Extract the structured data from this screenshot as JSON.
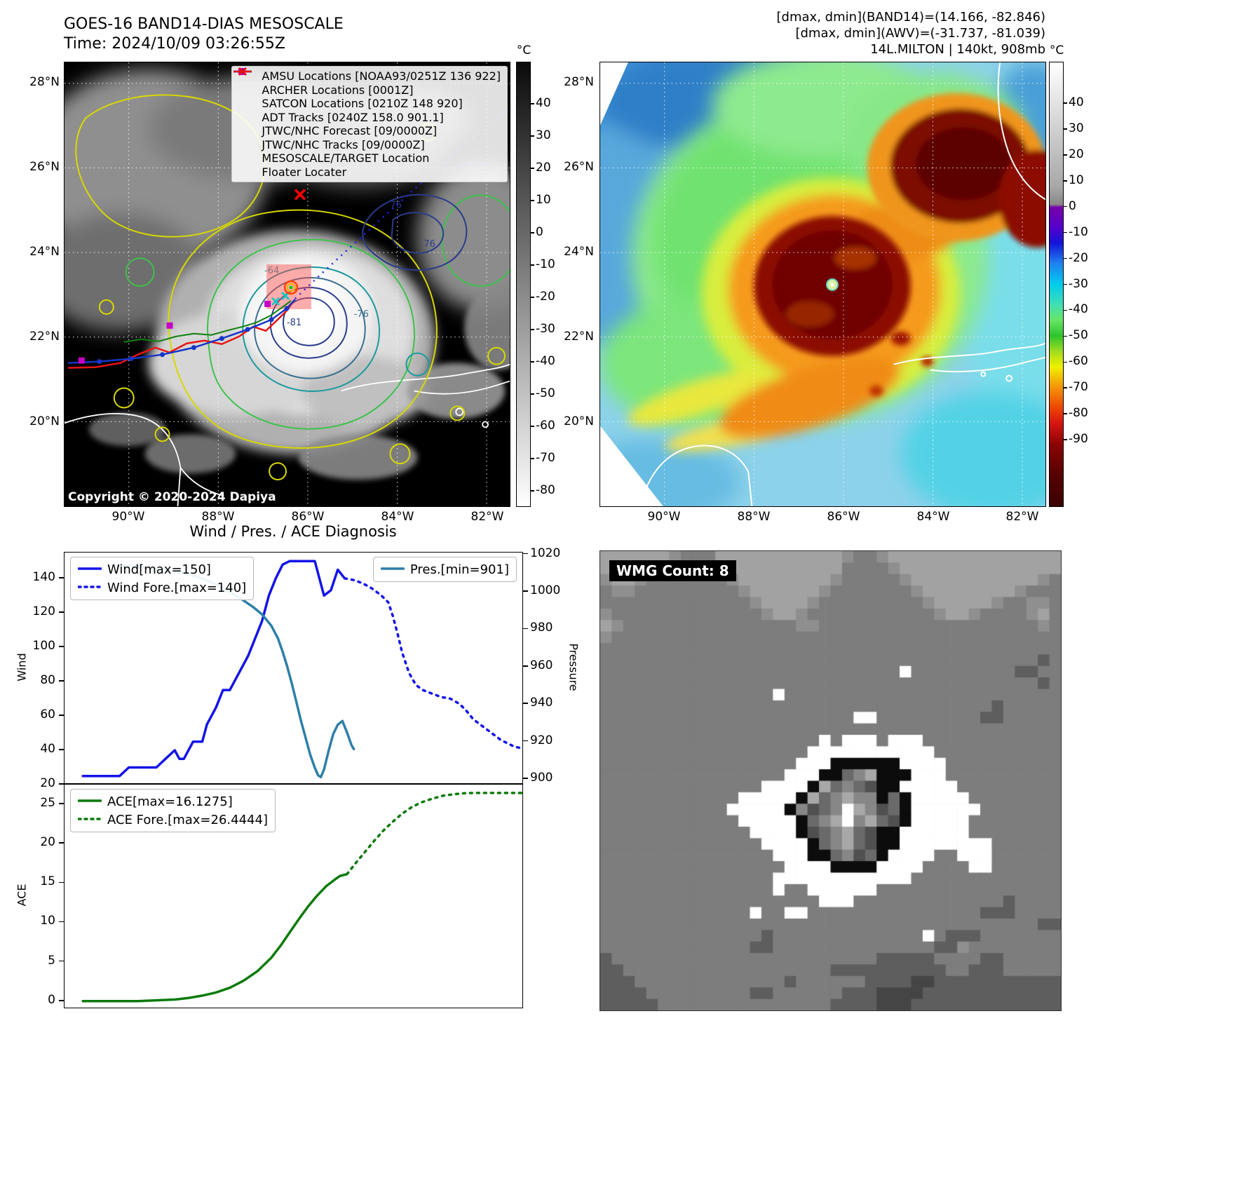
{
  "map_left": {
    "title": "GOES-16 BAND14-DIAS MESOSCALE",
    "time": "Time: 2024/10/09 03:26:55Z",
    "lat_ticks": [
      "28°N",
      "26°N",
      "24°N",
      "22°N",
      "20°N"
    ],
    "lon_ticks": [
      "90°W",
      "88°W",
      "86°W",
      "84°W",
      "82°W"
    ],
    "legend": [
      {
        "label": "AMSU Locations [NOAA93/0251Z 136 922]",
        "marker": "square",
        "color": "#c400c4"
      },
      {
        "label": "ARCHER Locations [0001Z]",
        "marker": "square",
        "color": "#c400c4"
      },
      {
        "label": "SATCON Locations [0210Z 148 920]",
        "marker": "x",
        "color": "#00c8c8"
      },
      {
        "label": "ADT Tracks [0240Z 158.0 901.1]",
        "marker": "line",
        "color": "#0f7f0f"
      },
      {
        "label": "JTWC/NHC Forecast [09/0000Z]",
        "marker": "dotted",
        "color": "#2222e8"
      },
      {
        "label": "JTWC/NHC Tracks [09/0000Z]",
        "marker": "line-dot",
        "color": "#1535c8"
      },
      {
        "label": "MESOSCALE/TARGET Location",
        "marker": "x",
        "color": "#ff0000"
      },
      {
        "label": "Floater Locater",
        "marker": "line",
        "color": "#e81414"
      }
    ],
    "copyright": "Copyright © 2020-2024 Dapiya",
    "contour_labels": [
      "-64",
      "-76",
      "-81",
      "76",
      "76"
    ],
    "colorbar": {
      "unit": "°C",
      "ticks": [
        40,
        30,
        20,
        10,
        0,
        -10,
        -20,
        -30,
        -40,
        -50,
        -60,
        -70,
        -80
      ],
      "top_value": 53,
      "bottom_value": -85,
      "stops": [
        [
          53,
          "#0a0a0a"
        ],
        [
          -85,
          "#ffffff"
        ]
      ]
    }
  },
  "map_right": {
    "header_lines": [
      "[dmax, dmin](BAND14)=(14.166, -82.846)",
      "[dmax, dmin](AWV)=(-31.737, -81.039)",
      "14L.MILTON | 140kt, 908mb"
    ],
    "lat_ticks": [
      "28°N",
      "26°N",
      "24°N",
      "22°N",
      "20°N"
    ],
    "lon_ticks": [
      "90°W",
      "88°W",
      "86°W",
      "84°W",
      "82°W"
    ],
    "colorbar": {
      "unit": "°C",
      "ticks": [
        40,
        30,
        20,
        10,
        0,
        -10,
        -20,
        -30,
        -40,
        -50,
        -60,
        -70,
        -80,
        -90
      ],
      "top_value": 56,
      "bottom_value": -116,
      "stops": [
        [
          56,
          "#ffffff"
        ],
        [
          8,
          "#a8a8a8"
        ],
        [
          1,
          "#878787"
        ],
        [
          0,
          "#7700aa"
        ],
        [
          -8,
          "#5500cc"
        ],
        [
          -14,
          "#1414d8"
        ],
        [
          -22,
          "#1e82f0"
        ],
        [
          -30,
          "#00ccec"
        ],
        [
          -38,
          "#43dfb2"
        ],
        [
          -44,
          "#66e566"
        ],
        [
          -50,
          "#2cc42c"
        ],
        [
          -56,
          "#a0dc20"
        ],
        [
          -62,
          "#f0f000"
        ],
        [
          -70,
          "#f49208"
        ],
        [
          -78,
          "#ee4400"
        ],
        [
          -84,
          "#d41414"
        ],
        [
          -92,
          "#8c0404"
        ],
        [
          -104,
          "#550000"
        ],
        [
          -116,
          "#3c0000"
        ]
      ]
    }
  },
  "chart_data": [
    {
      "type": "line",
      "title": "Wind / Pres. / ACE Diagnosis",
      "panel": "wind-pressure",
      "x_range": [
        0,
        1
      ],
      "left_axis": {
        "label": "Wind",
        "lim": [
          20,
          155
        ],
        "ticks": [
          20,
          40,
          60,
          80,
          100,
          120,
          140
        ]
      },
      "right_axis": {
        "label": "Pressure",
        "lim": [
          897,
          1021
        ],
        "ticks": [
          900,
          920,
          940,
          960,
          980,
          1000,
          1020
        ]
      },
      "series": [
        {
          "name": "Wind[max=150]",
          "axis": "left",
          "color": "#1414e8",
          "dash": null,
          "width": 3.5,
          "x": [
            0.04,
            0.08,
            0.12,
            0.14,
            0.18,
            0.2,
            0.22,
            0.24,
            0.25,
            0.26,
            0.28,
            0.3,
            0.31,
            0.33,
            0.345,
            0.36,
            0.38,
            0.4,
            0.415,
            0.43,
            0.445,
            0.46,
            0.475,
            0.49,
            0.52,
            0.545,
            0.555,
            0.565,
            0.58,
            0.595,
            0.61
          ],
          "y": [
            25,
            25,
            25,
            30,
            30,
            30,
            35,
            40,
            35,
            35,
            45,
            45,
            55,
            65,
            75,
            75,
            85,
            95,
            105,
            115,
            130,
            140,
            148,
            150,
            150,
            150,
            140,
            130,
            133,
            145,
            140
          ]
        },
        {
          "name": "Wind Fore.[max=140]",
          "axis": "left",
          "color": "#1414e8",
          "dash": "3 7",
          "width": 3.5,
          "x": [
            0.61,
            0.63,
            0.65,
            0.67,
            0.69,
            0.705,
            0.715,
            0.725,
            0.735,
            0.75,
            0.765,
            0.78,
            0.8,
            0.82,
            0.84,
            0.86,
            0.875,
            0.89,
            0.905,
            0.92,
            0.935,
            0.95,
            0.965,
            0.98,
            1.0
          ],
          "y": [
            140,
            139,
            137,
            134,
            130,
            126,
            118,
            108,
            97,
            85,
            78,
            75,
            73,
            71,
            70,
            67,
            63,
            58,
            55,
            52,
            49,
            46,
            44,
            42,
            41
          ]
        },
        {
          "name": "Pres.[min=901]",
          "axis": "right",
          "color": "#2e7fa8",
          "dash": null,
          "width": 3.5,
          "x": [
            0.1,
            0.14,
            0.18,
            0.22,
            0.26,
            0.29,
            0.32,
            0.35,
            0.38,
            0.41,
            0.43,
            0.45,
            0.465,
            0.475,
            0.485,
            0.495,
            0.505,
            0.515,
            0.525,
            0.535,
            0.545,
            0.552,
            0.558,
            0.565,
            0.575,
            0.585,
            0.595,
            0.605,
            0.615,
            0.625,
            0.63
          ],
          "y": [
            1014,
            1014,
            1013,
            1012,
            1010,
            1008,
            1005,
            1001,
            997,
            992,
            988,
            982,
            975,
            968,
            960,
            951,
            941,
            931,
            922,
            913,
            906,
            902,
            901,
            905,
            915,
            924,
            929,
            931,
            925,
            918,
            916
          ]
        }
      ],
      "legends": [
        {
          "pos": "top-left",
          "entries": [
            "Wind[max=150]",
            "Wind Fore.[max=140]"
          ]
        },
        {
          "pos": "top-right",
          "entries": [
            "Pres.[min=901]"
          ]
        }
      ]
    },
    {
      "type": "line",
      "title": "",
      "panel": "ace",
      "x_range": [
        0,
        1
      ],
      "left_axis": {
        "label": "ACE",
        "lim": [
          -1,
          27.5
        ],
        "ticks": [
          0,
          5,
          10,
          15,
          20,
          25
        ]
      },
      "right_axis": null,
      "series": [
        {
          "name": "ACE[max=16.1275]",
          "axis": "left",
          "color": "#0b7a0b",
          "dash": null,
          "width": 3.5,
          "x": [
            0.04,
            0.1,
            0.16,
            0.2,
            0.24,
            0.27,
            0.3,
            0.33,
            0.36,
            0.39,
            0.42,
            0.45,
            0.47,
            0.49,
            0.51,
            0.53,
            0.55,
            0.57,
            0.59,
            0.6,
            0.615
          ],
          "y": [
            0,
            0,
            0,
            0.1,
            0.2,
            0.4,
            0.7,
            1.1,
            1.7,
            2.6,
            3.8,
            5.5,
            7.0,
            8.7,
            10.4,
            12.0,
            13.4,
            14.6,
            15.5,
            15.9,
            16.13
          ]
        },
        {
          "name": "ACE Fore.[max=26.4444]",
          "axis": "left",
          "color": "#0b7a0b",
          "dash": "3 7",
          "width": 3.5,
          "x": [
            0.615,
            0.635,
            0.655,
            0.675,
            0.695,
            0.715,
            0.735,
            0.755,
            0.775,
            0.8,
            0.825,
            0.85,
            0.875,
            0.9,
            0.93,
            0.96,
            1.0
          ],
          "y": [
            16.13,
            17.6,
            19.0,
            20.4,
            21.7,
            22.8,
            23.8,
            24.6,
            25.2,
            25.7,
            26.1,
            26.3,
            26.42,
            26.44,
            26.44,
            26.44,
            26.44
          ]
        }
      ],
      "legends": [
        {
          "pos": "top-left",
          "entries": [
            "ACE[max=16.1275]",
            "ACE Fore.[max=26.4444]"
          ]
        }
      ]
    }
  ],
  "wmg": {
    "label": "WMG Count: 8",
    "bg": "#7d7d7d",
    "palette": {
      ".": "#7d7d7d",
      "L": "#a2a2a2",
      "l": "#8f8f8f",
      "D": "#5e5e5e",
      "E": "#454545",
      "W": "#ffffff",
      "B": "#0c0c0c",
      "1": "#505050",
      "2": "#6a6a6a",
      "3": "#878787",
      "4": "#a8a8a8"
    },
    "grid": [
      "LLLLLLl...LLLLLLLLLLLl..lLLLLLLLLLLLLLLL",
      "LLLLLl....LLLLLLLLLLL....lLLLLLLLLLLLLLL",
      "lLLl.......lLLLLLLLLl.....lLLLLLLLLLLLl.",
      ".ll.........lLLLLLLl.......lLLLLLLLLl...",
      ".............lLLLLl.........lLLLLLl..ll.",
      "l.............lLLl...........lLLl....lL.",
      "Ll...............ll...................l.",
      "l.......................................",
      "........................................",
      "......................................D.",
      "..........................W.........DD..",
      "......................................D.",
      "...............W........................",
      "..................................D.....",
      "......................WW.........DD.....",
      "........................................",
      "...................W.WWW.WWW............",
      "..................WWWWWWWWWWW...........",
      ".................WWWBBBBBBWWWW..........",
      "................WWWBB234BBBWWW..........",
      "..............WWWWB42321BBWWWWW.........",
      "............WWWWWB423433B2BWWWWW........",
      "...........WWWWWB3123W4312BWWWWWW.......",
      "............WWWWWB234W3421BWWWWW........",
      ".............WWWWB123421BBWWWWWW........",
      "..............WWWWB23421BBWWWWWWWW......",
      "...............WWWBB2312BWWWW..WWW......",
      "................WWWWBBBBWWWW....WW......",
      "...............WWWWWWWWWWWW.............",
      "...............W..WWWWWW................",
      "...................WWW.............D....",
      ".............W..WW...............DDD....",
      "......................................DD",
      "..............D.............W.DDD......",
      ".............DD..............DDl........",
      "D.......................DDDDD....DD..",
      "DD..................DDDDDDDDDD..DDD.",
      "DDD.............D......DDDDEEDDDDDDDDDDD",
      "DDDD.........DD......DDDEEEEDDDDDDDDDDDD",
      "DDDDD...............DDDDEEEDDDDDDDDDDDDD"
    ]
  }
}
